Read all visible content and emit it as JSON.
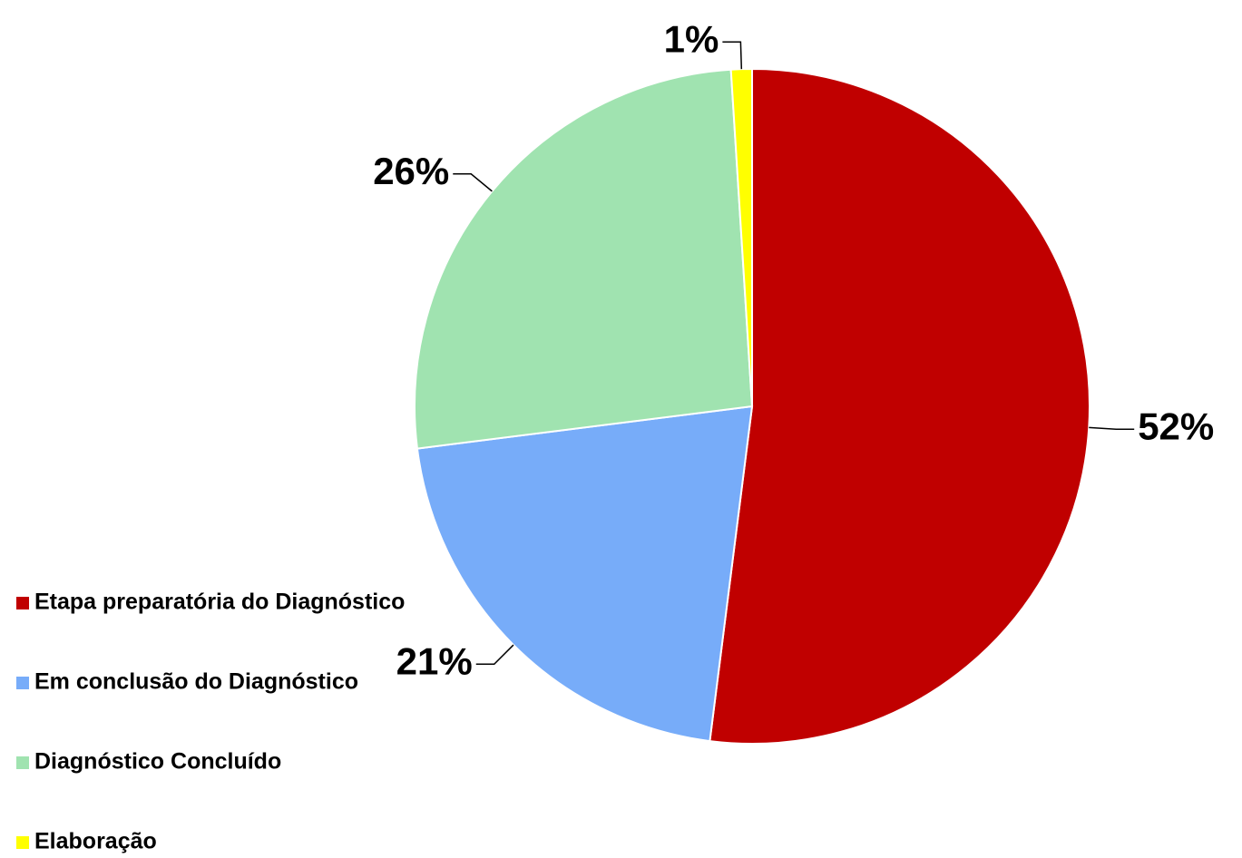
{
  "chart_data": {
    "type": "pie",
    "categories": [
      "Etapa preparatória do Diagnóstico",
      "Em conclusão do Diagnóstico",
      "Diagnóstico Concluído",
      "Elaboração"
    ],
    "values": [
      52,
      21,
      26,
      1
    ],
    "value_labels": [
      "52%",
      "21%",
      "26%",
      "1%"
    ],
    "colors": [
      "#c00000",
      "#77acf9",
      "#a0e3b0",
      "#ffff00"
    ],
    "legend": "bottom-left"
  }
}
